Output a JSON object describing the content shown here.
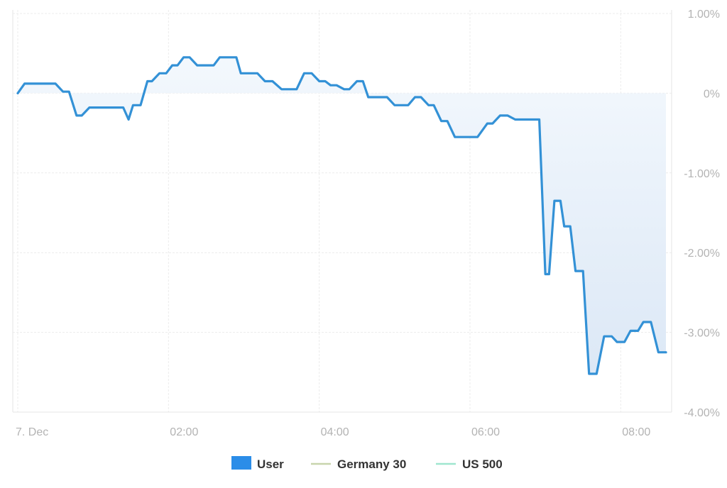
{
  "chart_data": {
    "type": "area",
    "x_tick_labels": [
      "7. Dec",
      "02:00",
      "04:00",
      "06:00",
      "08:00"
    ],
    "x_tick_hours": [
      0,
      2,
      4,
      6,
      8
    ],
    "x_range_hours": [
      0,
      8.6
    ],
    "y_tick_labels": [
      "1.00%",
      "0%",
      "-1.00%",
      "-2.00%",
      "-3.00%",
      "-4.00%"
    ],
    "y_ticks": [
      1,
      0,
      -1,
      -2,
      -3,
      -4
    ],
    "ylim": [
      -4,
      1
    ],
    "y_unit": "%",
    "grid": true,
    "legend_position": "bottom",
    "series": [
      {
        "name": "User",
        "color": "#3391d6",
        "swatch_color": "#2b8de8",
        "x_hours": [
          0,
          0.09,
          0.1,
          0.5,
          0.6,
          0.68,
          0.78,
          0.85,
          0.95,
          1.0,
          1.4,
          1.47,
          1.53,
          1.63,
          1.72,
          1.78,
          1.88,
          1.97,
          2.05,
          2.12,
          2.2,
          2.28,
          2.38,
          2.5,
          2.6,
          2.68,
          2.78,
          2.9,
          2.96,
          3.06,
          3.18,
          3.28,
          3.38,
          3.5,
          3.6,
          3.7,
          3.8,
          3.9,
          4.0,
          4.08,
          4.15,
          4.23,
          4.33,
          4.4,
          4.5,
          4.58,
          4.65,
          4.75,
          4.8,
          4.9,
          5.0,
          5.07,
          5.18,
          5.27,
          5.35,
          5.45,
          5.52,
          5.62,
          5.7,
          5.8,
          5.9,
          6.1,
          6.23,
          6.3,
          6.4,
          6.5,
          6.6,
          6.75,
          6.83,
          6.92,
          7.0,
          7.05,
          7.12,
          7.2,
          7.25,
          7.33,
          7.4,
          7.5,
          7.58,
          7.68,
          7.78,
          7.88,
          7.95,
          8.05,
          8.13,
          8.23,
          8.3,
          8.4,
          8.5,
          8.6
        ],
        "values": [
          0.0,
          0.12,
          0.12,
          0.12,
          0.02,
          0.02,
          -0.28,
          -0.28,
          -0.18,
          -0.18,
          -0.18,
          -0.33,
          -0.15,
          -0.15,
          0.15,
          0.15,
          0.25,
          0.25,
          0.35,
          0.35,
          0.45,
          0.45,
          0.35,
          0.35,
          0.35,
          0.45,
          0.45,
          0.45,
          0.25,
          0.25,
          0.25,
          0.15,
          0.15,
          0.05,
          0.05,
          0.05,
          0.25,
          0.25,
          0.15,
          0.15,
          0.1,
          0.1,
          0.05,
          0.05,
          0.15,
          0.15,
          -0.05,
          -0.05,
          -0.05,
          -0.05,
          -0.15,
          -0.15,
          -0.15,
          -0.05,
          -0.05,
          -0.15,
          -0.15,
          -0.35,
          -0.35,
          -0.55,
          -0.55,
          -0.55,
          -0.38,
          -0.38,
          -0.28,
          -0.28,
          -0.33,
          -0.33,
          -0.33,
          -0.33,
          -2.27,
          -2.27,
          -1.35,
          -1.35,
          -1.67,
          -1.67,
          -2.23,
          -2.23,
          -3.52,
          -3.52,
          -3.05,
          -3.05,
          -3.12,
          -3.12,
          -2.98,
          -2.98,
          -2.87,
          -2.87,
          -3.25,
          -3.25
        ]
      },
      {
        "name": "Germany 30",
        "color": "#c8d5ad"
      },
      {
        "name": "US 500",
        "color": "#9fe6cf"
      }
    ]
  }
}
